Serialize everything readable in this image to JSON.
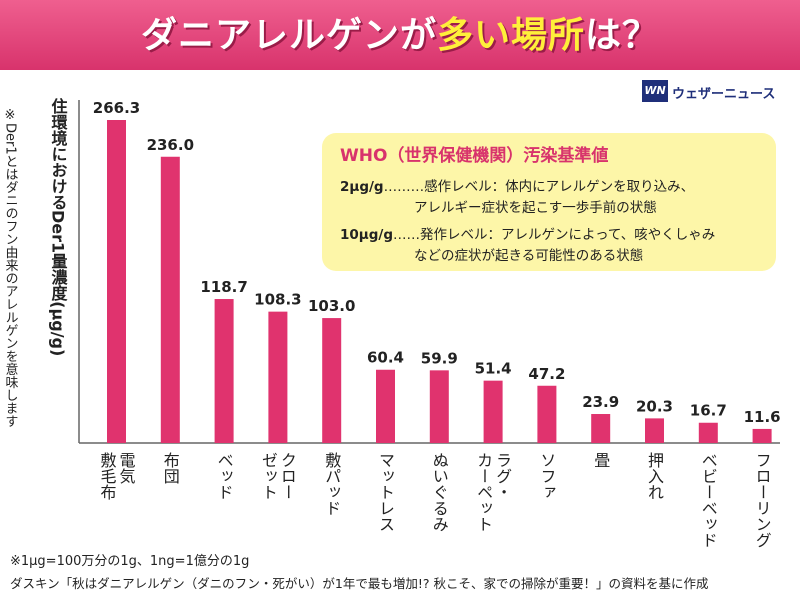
{
  "banner": {
    "title_main": "ダニアレルゲンが",
    "title_em": "多い場所",
    "title_end": "は？"
  },
  "logo": {
    "mark": "WN",
    "text": "ウェザーニュース"
  },
  "side_note": "※Der1とはダニのフン由来のアレルゲンを意味します",
  "who": {
    "title": "WHO（世界保健機関）汚染基準値",
    "rows": [
      {
        "level": "2μg/g",
        "dots": "………",
        "text1": "感作レベル：体内にアレルゲンを取り込み、",
        "text2": "アレルギー症状を起こす一歩手前の状態"
      },
      {
        "level": "10μg/g",
        "dots": "……",
        "text1": "発作レベル：アレルゲンによって、咳やくしゃみ",
        "text2": "などの症状が起きる可能性のある状態"
      }
    ]
  },
  "footnotes": {
    "line1": "※1μg=100万分の1g、1ng=1億分の1g",
    "line2": "ダスキン「秋はダニアレルゲン（ダニのフン・死がい）が1年で最も増加!? 秋こそ、家での掃除が重要！」の資料を基に作成"
  },
  "colors": {
    "bar": "#e0336e",
    "banner": "#e2457a",
    "title_em": "#ffef3a",
    "who_bg": "#fdf6a8"
  },
  "chart_data": {
    "type": "bar",
    "title": "",
    "ylabel": "住環境におけるDer1量濃度(μg/g)",
    "xlabel": "",
    "ylim": [
      0,
      280
    ],
    "categories": [
      [
        "電気",
        "敷毛布"
      ],
      [
        "布団"
      ],
      [
        "ベッド"
      ],
      [
        "クロー",
        "ゼット"
      ],
      [
        "敷パッド"
      ],
      [
        "マットレス"
      ],
      [
        "ぬいぐるみ"
      ],
      [
        "ラグ・",
        "カーペット"
      ],
      [
        "ソファ"
      ],
      [
        "畳"
      ],
      [
        "押入れ"
      ],
      [
        "ベビーベッド"
      ],
      [
        "フローリング"
      ]
    ],
    "values": [
      266.3,
      236.0,
      118.7,
      108.3,
      103.0,
      60.4,
      59.9,
      51.4,
      47.2,
      23.9,
      20.3,
      16.7,
      11.6
    ],
    "value_labels": [
      "266.3",
      "236.0",
      "118.7",
      "108.3",
      "103.0",
      "60.4",
      "59.9",
      "51.4",
      "47.2",
      "23.9",
      "20.3",
      "16.7",
      "11.6"
    ],
    "grid": false,
    "legend": "none"
  }
}
